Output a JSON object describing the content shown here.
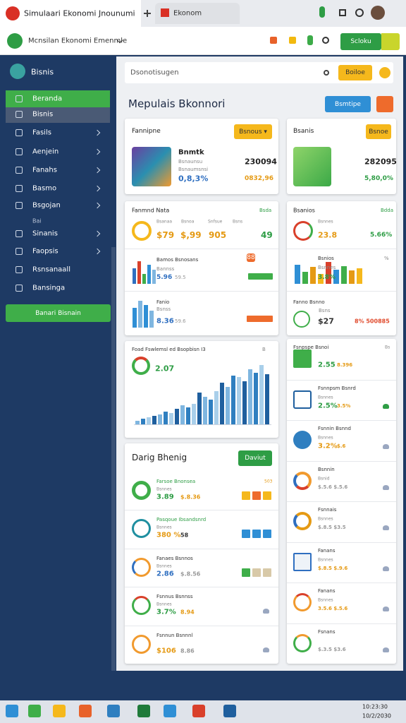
{
  "browser": {
    "tabs": [
      "Simulaari Ekonomi Jnounumi",
      "Ekonom"
    ]
  },
  "app_header": {
    "workspace": "Mcnsilan Ekonomi Emenmle",
    "button": "Scloku"
  },
  "sidebar": {
    "brand": "Bisnis",
    "items": [
      "Beranda",
      "Bisnis",
      "Fasils",
      "Aenjein",
      "Fanahs",
      "Basmo",
      "Bsgojan",
      "Sinanis",
      "Faopsis",
      "Rsnsanaall",
      "Bansinga"
    ],
    "section": "Bai",
    "button": "Banari Bisnain"
  },
  "topbar": {
    "search": "Dsonotisugen",
    "button": "Boiloe"
  },
  "page": {
    "title": "Mepulais Bkonnori",
    "button": "Bsmtipe"
  },
  "summary": [
    {
      "title": "Fannipne",
      "button": "Bsnous ▾",
      "name": "Bnmtk",
      "lines": [
        "Bsnaunsu",
        "Bsnaumsnsi"
      ],
      "value": "230094",
      "percent": "0,8,3%",
      "change": "0832,96"
    },
    {
      "title": "Bsanis",
      "button": "Bsnoe",
      "value": "282095",
      "change": "5,80,0%"
    }
  ],
  "metrics_left": {
    "title": "Fanmnd Nata",
    "tag": "Bsda",
    "labels": [
      "Bsanaa",
      "Bsnoa",
      "Snfsue",
      "Bsns"
    ],
    "values": [
      "$79",
      "$,99",
      "905",
      "49"
    ],
    "rows": [
      {
        "title": "Bamos Bsnosans",
        "sub": "Bannss",
        "value": "5.96",
        "extra": "59.5",
        "tag": "88",
        "bars": [
          60,
          90,
          40,
          75,
          55
        ]
      },
      {
        "title": "Fanio",
        "sub": "Bsnss",
        "value": "8.36",
        "extra": "59.6",
        "bars": [
          70,
          95,
          80,
          60
        ]
      }
    ]
  },
  "metrics_right": {
    "title": "Bsanios",
    "tag": "Bdda",
    "label": "Bsnnes",
    "value": "23.8",
    "change": "5.66%",
    "rows": [
      {
        "title": "Bsnios",
        "sub": "Bsnnes",
        "value": "3.8%",
        "bars": [
          80,
          50,
          70,
          40,
          90,
          60,
          75,
          55,
          65
        ],
        "tag": "%"
      },
      {
        "title": "Fanno Bsnno",
        "sub": "Bsns",
        "value": "$27",
        "extra": "8% 500885"
      }
    ]
  },
  "trend_chart": {
    "title": "Foad Fswlemsl ed Bsopbisn I3",
    "tag": "B",
    "value": "2.07",
    "bars": [
      5,
      8,
      10,
      12,
      14,
      18,
      16,
      22,
      28,
      24,
      30,
      46,
      40,
      36,
      48,
      60,
      54,
      70,
      68,
      62,
      80,
      74,
      86,
      72
    ]
  },
  "list_left": {
    "title": "Darig Bhenig",
    "button": "Daviut",
    "rows": [
      {
        "title": "Farsoe Bnonsea",
        "sub": "Bsnnes",
        "value": "3.89",
        "extra": "$.8.36",
        "tag": "503"
      },
      {
        "title": "Pasqoue Ibsandsnrd",
        "sub": "Bsnnes",
        "value": "380 %",
        "extra": "58"
      },
      {
        "title": "Fanaes Bsnnos",
        "sub": "Bsnnes",
        "value": "2.86",
        "extra": "$.8.56"
      },
      {
        "title": "Fsnnus Bsnnss",
        "sub": "Bsnnes",
        "value": "3.7%",
        "extra": "8.94"
      },
      {
        "title": "Fsnnun Bsnnnl",
        "value": "$106",
        "extra": "8.86"
      }
    ]
  },
  "list_right": {
    "rows": [
      {
        "title": "Fsnpspe Bsnoi",
        "value": "2.55",
        "extra": "8.396",
        "tag": "Bs"
      },
      {
        "title": "Fsnnpsm Bsnrd",
        "sub": "Bsnnes",
        "value": "2.5%",
        "extra": "3.5%"
      },
      {
        "title": "Fsnnin Bsnnd",
        "sub": "Bsnnes",
        "value": "3.2%",
        "extra": "$.6"
      },
      {
        "title": "Bsnnin",
        "sub": "Bsnid",
        "value": "$.5.6 $.5.6"
      },
      {
        "title": "Fsnnais",
        "sub": "Bsnnes",
        "value": "$.8.5 $3.5"
      },
      {
        "title": "Fanans",
        "sub": "Bsnnes",
        "value": "$.8.5 $.9.6"
      },
      {
        "title": "Fanans",
        "sub": "Bsnnes",
        "value": "3.5.6 $.5.6"
      },
      {
        "title": "Fsnans",
        "value": "$.3.5 $3.6"
      }
    ]
  },
  "taskbar": {
    "time": "10:23:30",
    "date": "10/2/2030"
  }
}
